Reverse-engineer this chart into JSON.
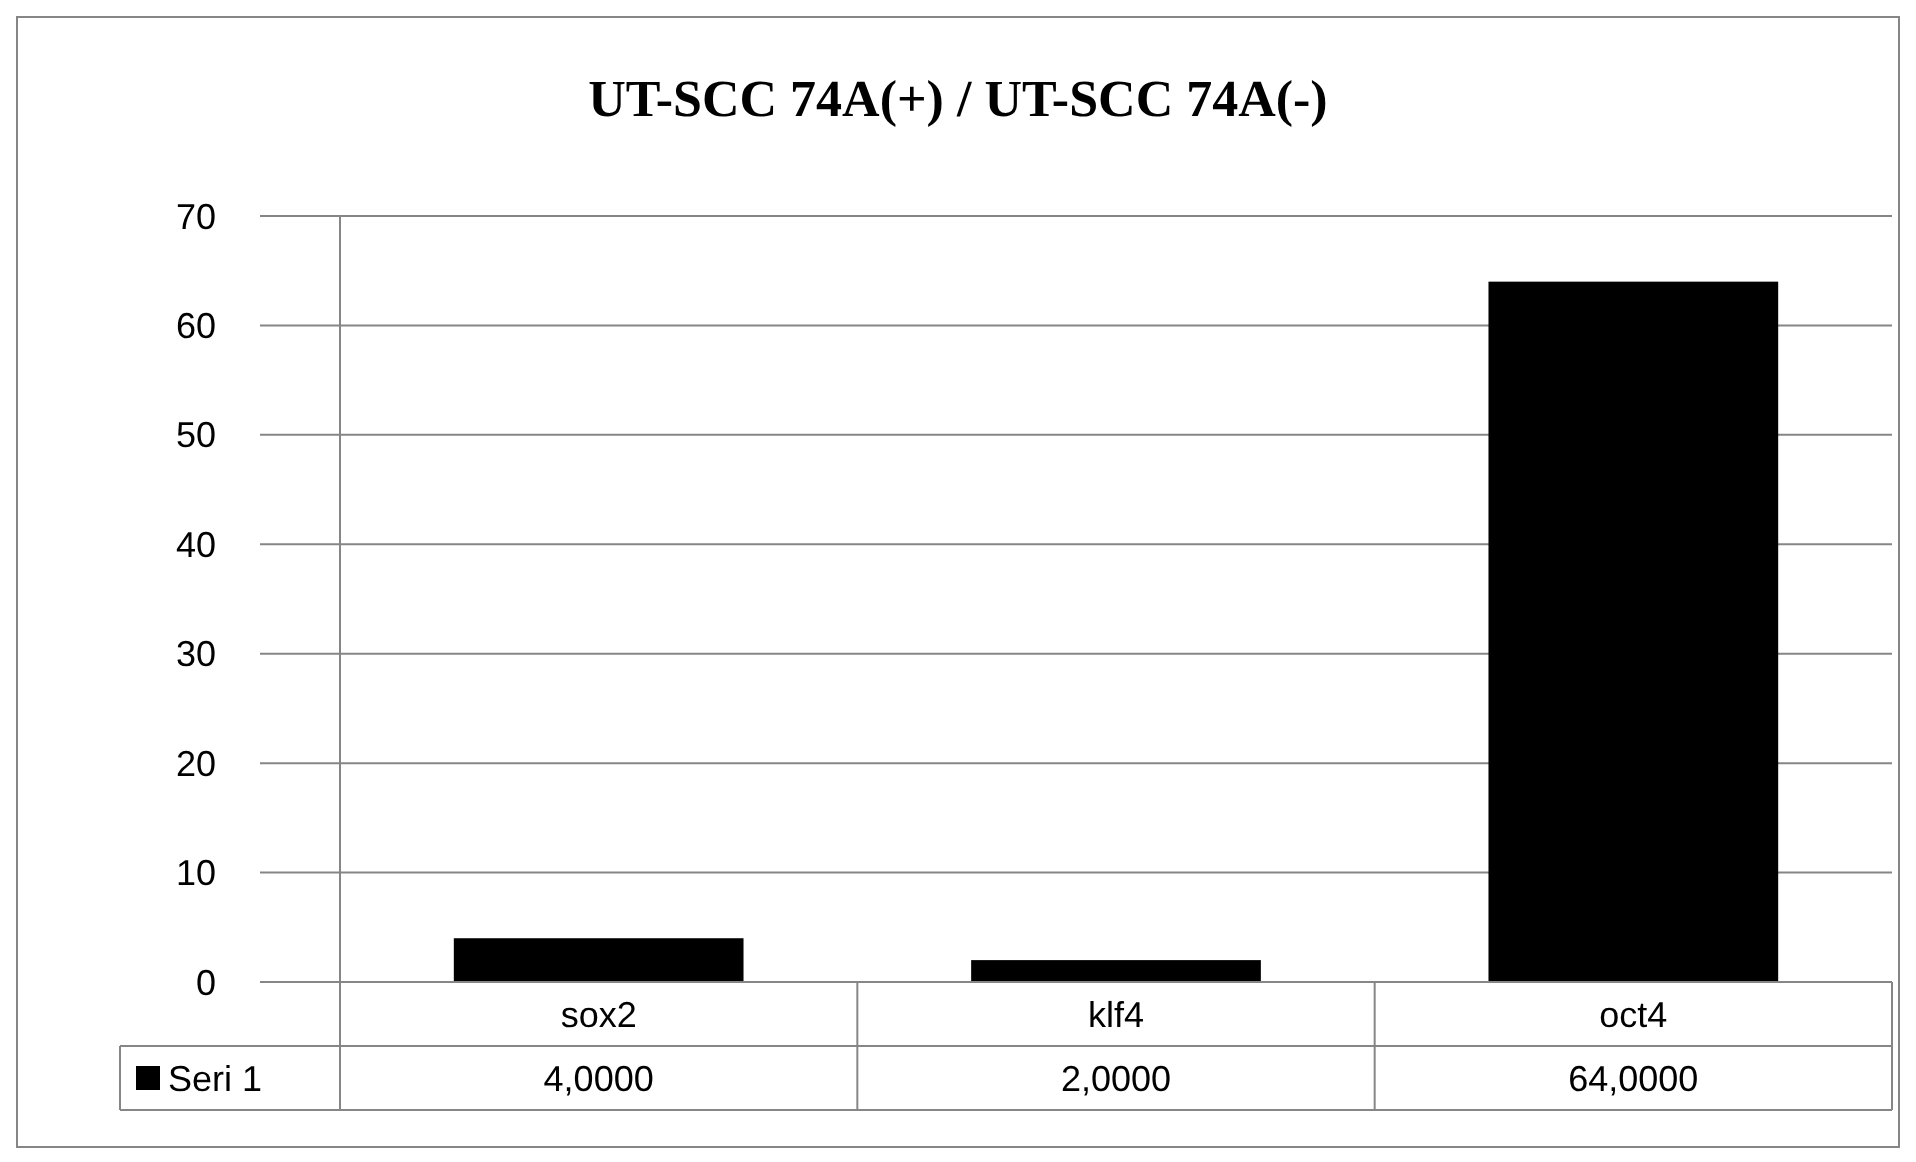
{
  "chart_data": {
    "type": "bar",
    "title": "UT-SCC 74A(+) / UT-SCC 74A(-)",
    "categories": [
      "sox2",
      "klf4",
      "oct4"
    ],
    "series": [
      {
        "name": "Seri 1",
        "color": "#000000",
        "values": [
          4,
          2,
          64
        ],
        "value_labels": [
          "4,0000",
          "2,0000",
          "64,0000"
        ]
      }
    ],
    "ylim": [
      0,
      70
    ],
    "yticks": [
      0,
      10,
      20,
      30,
      40,
      50,
      60,
      70
    ],
    "grid": "y",
    "legend": "bottom"
  }
}
